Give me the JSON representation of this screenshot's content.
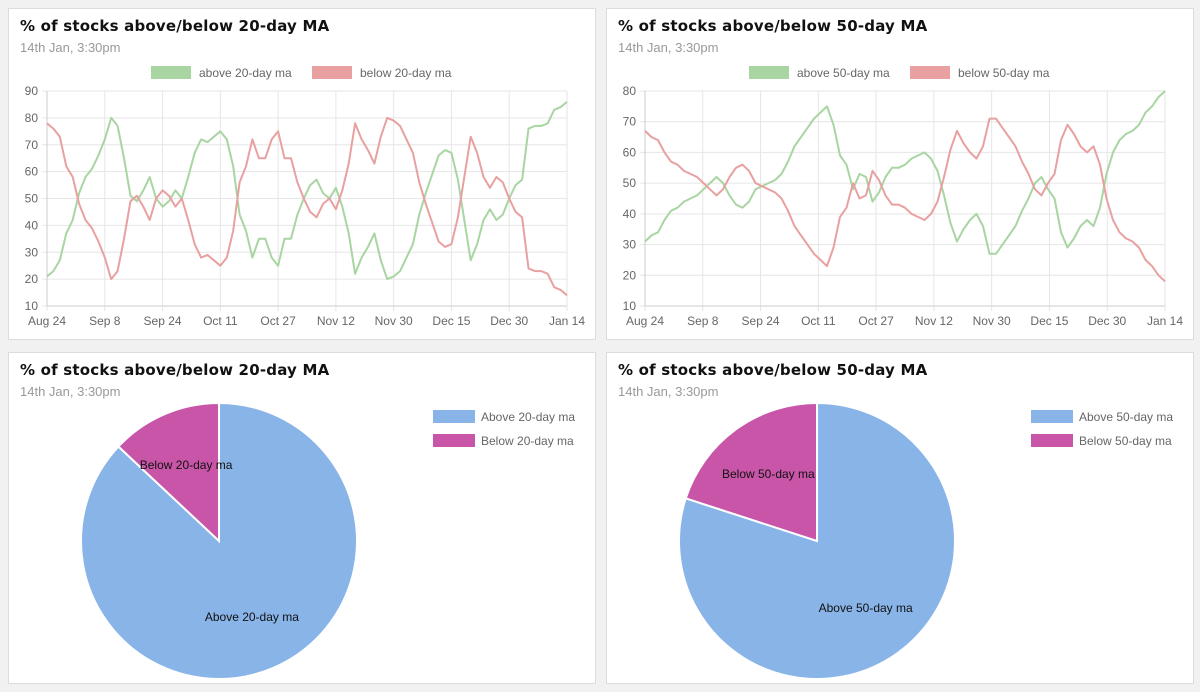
{
  "cards": [
    {
      "title": "% of stocks above/below 20-day MA",
      "subtitle": "14th Jan, 3:30pm"
    },
    {
      "title": "% of stocks above/below 50-day MA",
      "subtitle": "14th Jan, 3:30pm"
    },
    {
      "title": "% of stocks above/below 20-day MA",
      "subtitle": "14th Jan, 3:30pm"
    },
    {
      "title": "% of stocks above/below 50-day MA",
      "subtitle": "14th Jan, 3:30pm"
    }
  ],
  "chart_data": [
    {
      "type": "line",
      "title": "% of stocks above/below 20-day MA",
      "subtitle": "14th Jan, 3:30pm",
      "x_ticks": [
        "Aug 24",
        "Sep 8",
        "Sep 24",
        "Oct 11",
        "Oct 27",
        "Nov 12",
        "Nov 30",
        "Dec 15",
        "Dec 30",
        "Jan 14"
      ],
      "ylim": [
        10,
        90
      ],
      "y_ticks": [
        10,
        20,
        30,
        40,
        50,
        60,
        70,
        80,
        90
      ],
      "grid": true,
      "legend_position": "top",
      "series": [
        {
          "name": "above 20-day ma",
          "color": "#a8d5a2",
          "values": [
            21,
            23,
            27,
            37,
            42,
            52,
            58,
            61,
            66,
            72,
            80,
            77,
            65,
            51,
            49,
            53,
            58,
            50,
            47,
            49,
            53,
            50,
            58,
            67,
            72,
            71,
            73,
            75,
            72,
            62,
            44,
            38,
            28,
            35,
            35,
            28,
            25,
            35,
            35,
            44,
            50,
            55,
            57,
            52,
            50,
            54,
            47,
            37,
            22,
            28,
            32,
            37,
            27,
            20,
            21,
            23,
            28,
            33,
            44,
            52,
            59,
            66,
            68,
            67,
            57,
            42,
            27,
            33,
            42,
            46,
            42,
            44,
            50,
            55,
            57,
            76,
            77,
            77,
            78,
            83,
            84,
            86
          ]
        },
        {
          "name": "below 20-day ma",
          "color": "#e8a0a0",
          "values": [
            78,
            76,
            73,
            62,
            58,
            48,
            42,
            39,
            34,
            28,
            20,
            23,
            35,
            49,
            51,
            47,
            42,
            50,
            53,
            51,
            47,
            50,
            42,
            33,
            28,
            29,
            27,
            25,
            28,
            38,
            56,
            62,
            72,
            65,
            65,
            72,
            75,
            65,
            65,
            56,
            50,
            45,
            43,
            48,
            50,
            46,
            53,
            63,
            78,
            72,
            68,
            63,
            73,
            80,
            79,
            77,
            72,
            67,
            56,
            48,
            41,
            34,
            32,
            33,
            43,
            58,
            73,
            67,
            58,
            54,
            58,
            56,
            50,
            45,
            43,
            24,
            23,
            23,
            22,
            17,
            16,
            14
          ]
        }
      ]
    },
    {
      "type": "line",
      "title": "% of stocks above/below 50-day MA",
      "subtitle": "14th Jan, 3:30pm",
      "x_ticks": [
        "Aug 24",
        "Sep 8",
        "Sep 24",
        "Oct 11",
        "Oct 27",
        "Nov 12",
        "Nov 30",
        "Dec 15",
        "Dec 30",
        "Jan 14"
      ],
      "ylim": [
        10,
        80
      ],
      "y_ticks": [
        10,
        20,
        30,
        40,
        50,
        60,
        70,
        80
      ],
      "grid": true,
      "legend_position": "top",
      "series": [
        {
          "name": "above 50-day ma",
          "color": "#a8d5a2",
          "values": [
            31,
            33,
            34,
            38,
            41,
            42,
            44,
            45,
            46,
            48,
            50,
            52,
            50,
            46,
            43,
            42,
            44,
            48,
            49,
            50,
            51,
            53,
            57,
            62,
            65,
            68,
            71,
            73,
            75,
            69,
            59,
            56,
            48,
            53,
            52,
            44,
            47,
            52,
            55,
            55,
            56,
            58,
            59,
            60,
            58,
            54,
            46,
            37,
            31,
            35,
            38,
            40,
            36,
            27,
            27,
            30,
            33,
            36,
            41,
            45,
            50,
            52,
            48,
            45,
            34,
            29,
            32,
            36,
            38,
            36,
            42,
            53,
            60,
            64,
            66,
            67,
            69,
            73,
            75,
            78,
            80
          ]
        },
        {
          "name": "below 50-day ma",
          "color": "#e8a0a0",
          "values": [
            67,
            65,
            64,
            60,
            57,
            56,
            54,
            53,
            52,
            50,
            48,
            46,
            48,
            52,
            55,
            56,
            54,
            50,
            49,
            48,
            47,
            45,
            41,
            36,
            33,
            30,
            27,
            25,
            23,
            29,
            39,
            42,
            50,
            45,
            46,
            54,
            51,
            46,
            43,
            43,
            42,
            40,
            39,
            38,
            40,
            44,
            52,
            61,
            67,
            63,
            60,
            58,
            62,
            71,
            71,
            68,
            65,
            62,
            57,
            53,
            48,
            46,
            50,
            53,
            64,
            69,
            66,
            62,
            60,
            62,
            56,
            45,
            38,
            34,
            32,
            31,
            29,
            25,
            23,
            20,
            18
          ]
        }
      ]
    },
    {
      "type": "pie",
      "title": "% of stocks above/below 20-day MA",
      "subtitle": "14th Jan, 3:30pm",
      "legend_position": "top-right",
      "slices": [
        {
          "label": "Above 20-day ma",
          "value": 87,
          "color": "#89b4e8"
        },
        {
          "label": "Below 20-day ma",
          "value": 13,
          "color": "#c855a8"
        }
      ]
    },
    {
      "type": "pie",
      "title": "% of stocks above/below 50-day MA",
      "subtitle": "14th Jan, 3:30pm",
      "legend_position": "top-right",
      "slices": [
        {
          "label": "Above 50-day ma",
          "value": 80,
          "color": "#89b4e8"
        },
        {
          "label": "Below 50-day ma",
          "value": 20,
          "color": "#c855a8"
        }
      ]
    }
  ]
}
